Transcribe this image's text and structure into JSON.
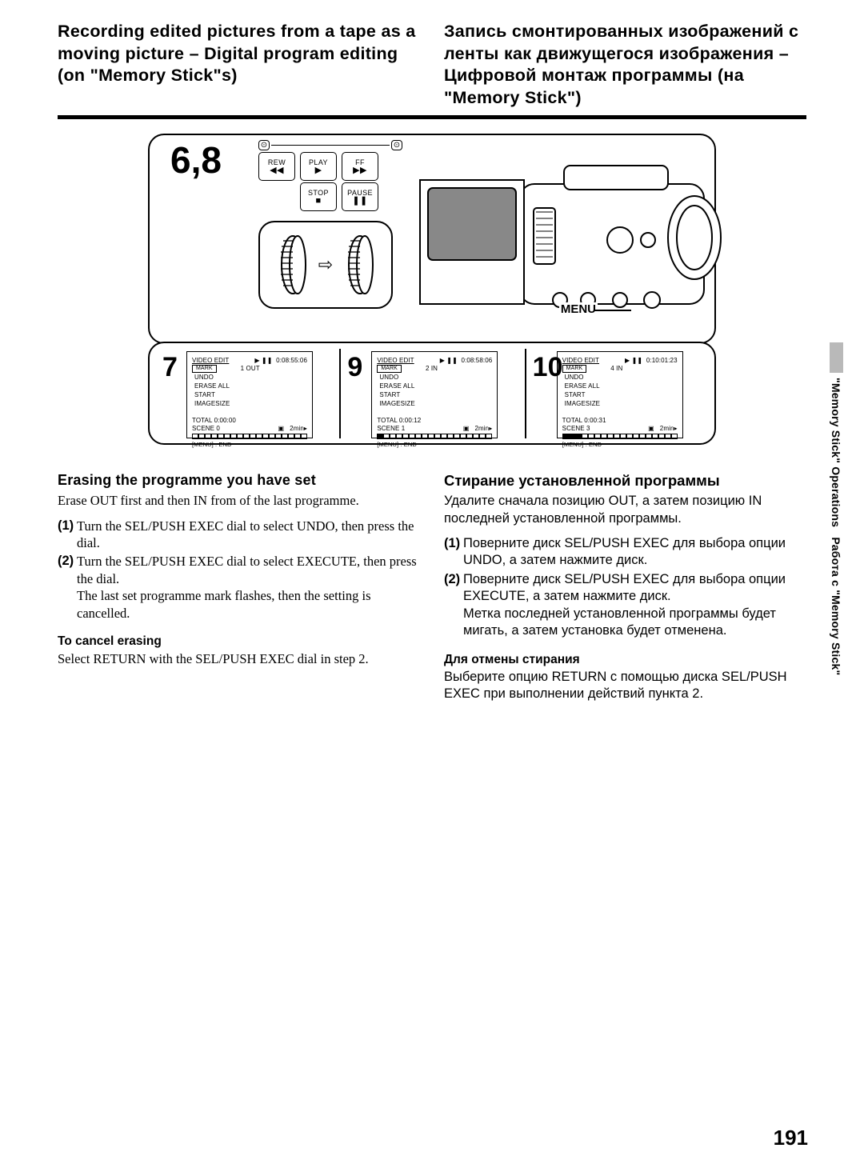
{
  "titles": {
    "en": "Recording edited pictures from a tape as a moving picture – Digital program editing (on \"Memory Stick\"s)",
    "ru": "Запись смонтированных изображений с ленты как движущегося изображения – Цифровой монтаж программы (на \"Memory Stick\")"
  },
  "step_68": "6,8",
  "buttons": {
    "rew": "REW",
    "play": "PLAY",
    "ff": "FF",
    "stop": "STOP",
    "pause": "PAUSE",
    "rew_sym": "◀◀",
    "play_sym": "▶",
    "ff_sym": "▶▶",
    "stop_sym": "■",
    "pause_sym": "❚❚"
  },
  "menu_label": "MENU",
  "screens": [
    {
      "num": "7",
      "time": "0:08:55:06",
      "mark": "1  OUT",
      "total": "TOTAL  0:00:00",
      "scene": "SCENE  0",
      "dur": "2min",
      "fill": 0
    },
    {
      "num": "9",
      "time": "0:08:58:06",
      "mark": "2  IN",
      "total": "TOTAL  0:00:12",
      "scene": "SCENE  1",
      "dur": "2min",
      "fill": 1
    },
    {
      "num": "10",
      "time": "0:10:01:23",
      "mark": "4  IN",
      "total": "TOTAL  0:00:31",
      "scene": "SCENE  3",
      "dur": "2min",
      "fill": 3
    }
  ],
  "lcd_lines": {
    "video_edit": "VIDEO  EDIT",
    "mark": "MARK",
    "undo": "UNDO",
    "erase": "ERASE ALL",
    "start": "START",
    "imagesize": "IMAGESIZE",
    "menu_end": "[MENU] : END",
    "play_pause": "▶ ❚❚"
  },
  "en_section": {
    "h2": "Erasing the programme you have set",
    "p1": "Erase OUT first and then IN from of the last programme.",
    "s1": "Turn the SEL/PUSH EXEC dial to select UNDO, then press the dial.",
    "s2": "Turn the SEL/PUSH EXEC dial to select EXECUTE, then press the dial.",
    "s2b": "The last set programme mark flashes, then the setting is cancelled.",
    "h3": "To cancel erasing",
    "p2": "Select RETURN with the SEL/PUSH EXEC dial in step 2."
  },
  "ru_section": {
    "h2": "Стирание установленной программы",
    "p1": "Удалите сначала позицию OUT, а затем позицию IN последней установленной программы.",
    "s1": "Поверните диск SEL/PUSH EXEC для выбора опции UNDO, а затем нажмите диск.",
    "s2": "Поверните диск SEL/PUSH EXEC для выбора опции EXECUTE, а затем нажмите диск.",
    "s2b": "Метка последней установленной программы будет мигать, а затем установка будет отменена.",
    "h3": "Для отмены стирания",
    "p2": "Выберите опцию RETURN с помощью диска SEL/PUSH EXEC при выполнении действий пункта 2."
  },
  "step_labels": {
    "one": "(1)",
    "two": "(2)"
  },
  "side_en": "\"Memory Stick\" Operations",
  "side_ru": "Работа с \"Memory Stick\"",
  "page_number": "191",
  "arrow": "⇨"
}
